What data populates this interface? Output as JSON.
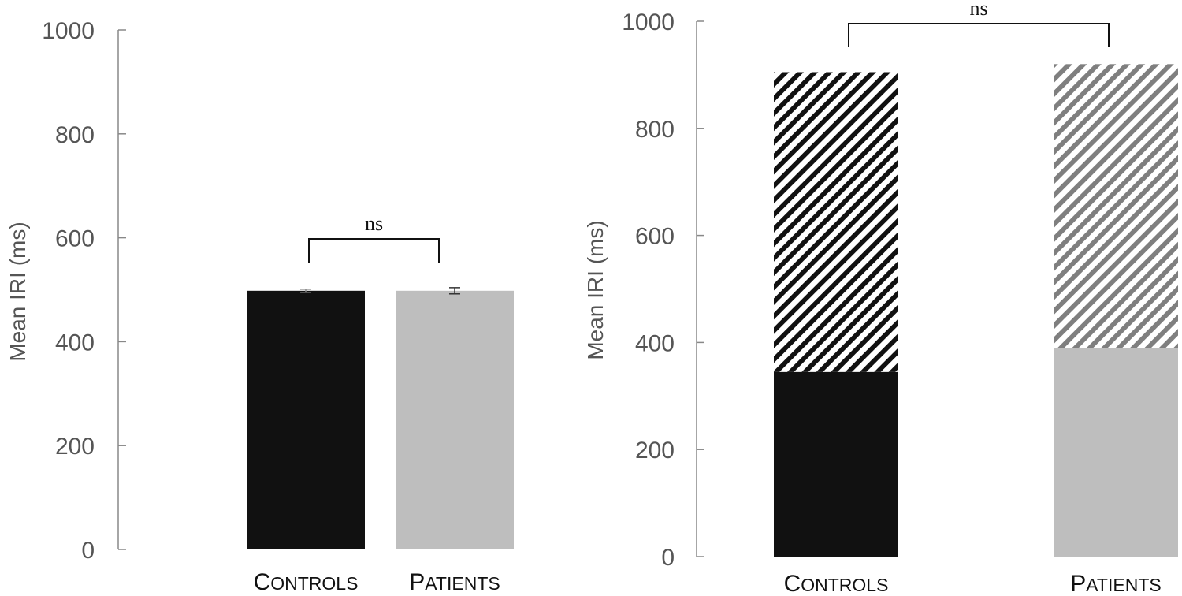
{
  "chart_data": [
    {
      "type": "bar",
      "ylabel": "Mean IRI (ms)",
      "ylim": [
        0,
        1000
      ],
      "yticks": [
        0,
        200,
        400,
        600,
        800,
        1000
      ],
      "grid": false,
      "categories": [
        "Controls",
        "Patients"
      ],
      "series": [
        {
          "values": [
            498,
            498
          ],
          "errors": [
            3,
            6
          ],
          "colors": [
            "#111111",
            "#bebebe"
          ]
        }
      ],
      "annotations": [
        {
          "text": "ns",
          "between": [
            "Controls",
            "Patients"
          ]
        }
      ]
    },
    {
      "type": "bar",
      "stacked": true,
      "ylabel": "Mean IRI (ms)",
      "ylim": [
        0,
        1000
      ],
      "yticks": [
        0,
        200,
        400,
        600,
        800,
        1000
      ],
      "grid": false,
      "categories": [
        "Controls",
        "Patients"
      ],
      "series": [
        {
          "values": [
            345,
            390
          ],
          "colors": [
            "#111111",
            "#bebebe"
          ],
          "pattern": "solid"
        },
        {
          "values": [
            560,
            530
          ],
          "colors": [
            "#111111",
            "#7f7f7f"
          ],
          "pattern": "hatched"
        }
      ],
      "annotations": [
        {
          "text": "ns",
          "between": [
            "Controls",
            "Patients"
          ]
        }
      ]
    }
  ]
}
